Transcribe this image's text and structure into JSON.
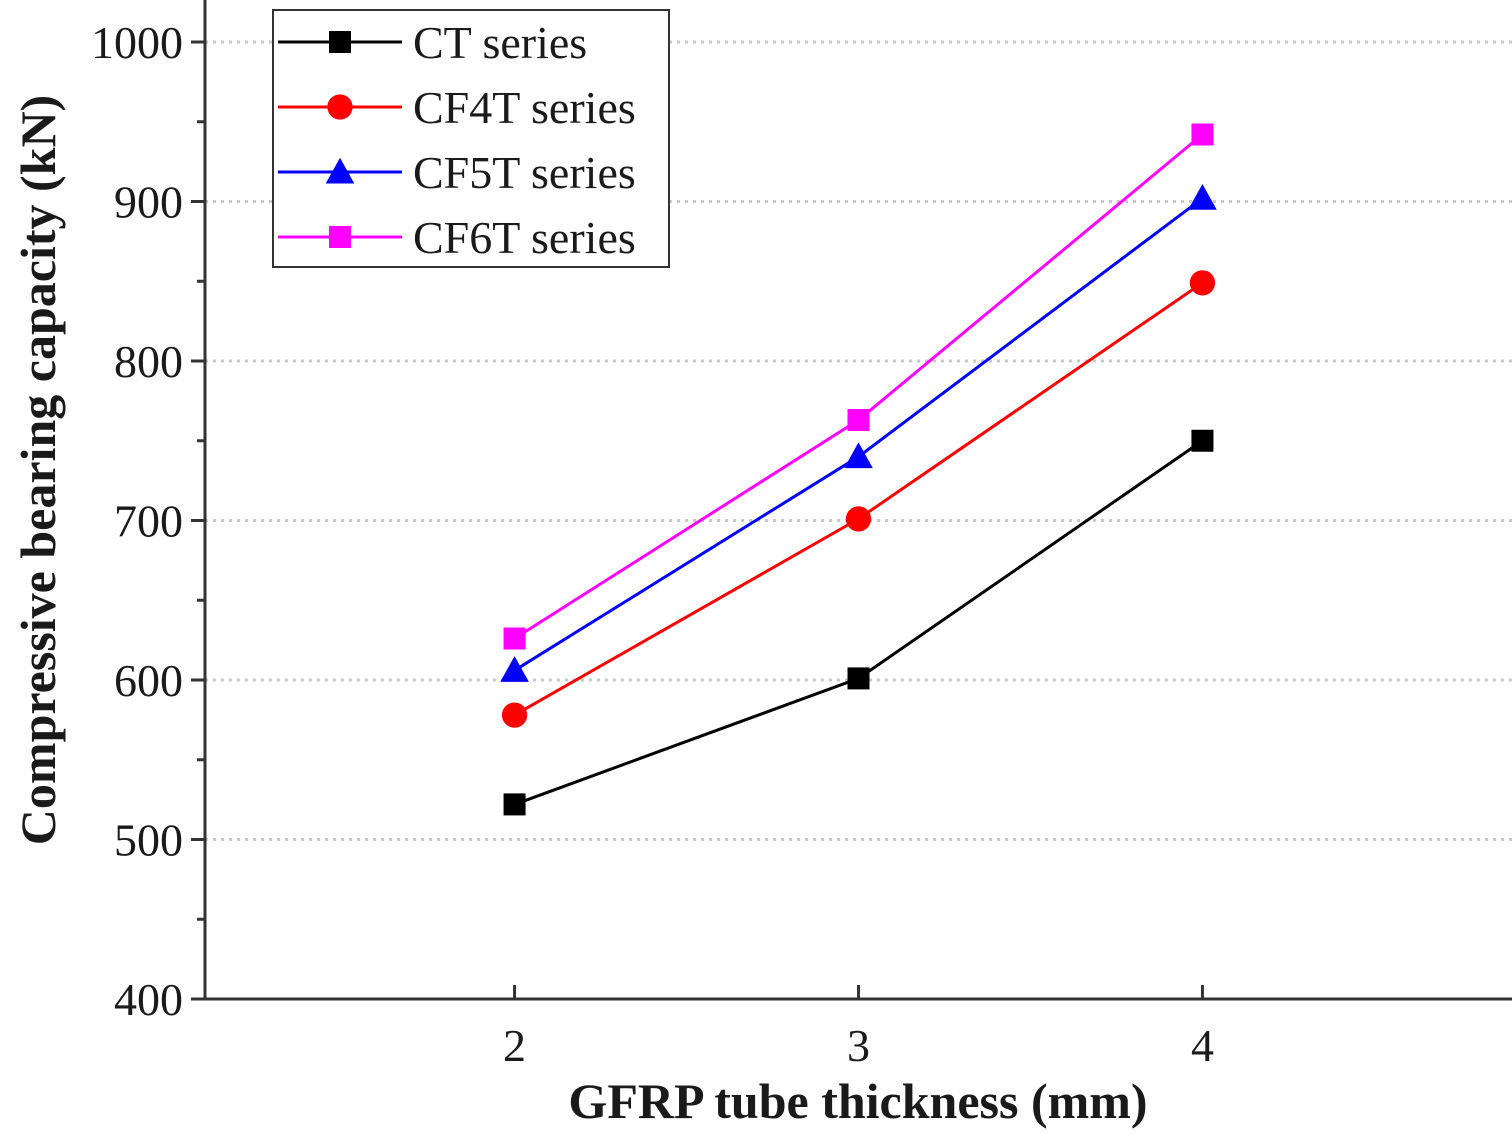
{
  "chart_data": {
    "type": "line",
    "xlabel": "GFRP tube thickness (mm)",
    "ylabel": "Compressive bearing capacity (kN)",
    "x": [
      2,
      3,
      4
    ],
    "xlim": [
      1.1,
      4.9
    ],
    "ylim": [
      400,
      1000
    ],
    "x_ticks": [
      2,
      3,
      4
    ],
    "y_ticks": [
      400,
      500,
      600,
      700,
      800,
      900,
      1000
    ],
    "grid": "horizontal dotted",
    "legend_position": "top-left",
    "series": [
      {
        "name": "CT series",
        "color": "#000000",
        "marker": "square",
        "values": [
          522,
          601,
          750
        ]
      },
      {
        "name": "CF4T series",
        "color": "#ff0000",
        "marker": "circle",
        "values": [
          578,
          701,
          849
        ]
      },
      {
        "name": "CF5T series",
        "color": "#0000ff",
        "marker": "triangle",
        "values": [
          606,
          740,
          902
        ]
      },
      {
        "name": "CF6T series",
        "color": "#ff00ff",
        "marker": "square",
        "values": [
          626,
          763,
          942
        ]
      }
    ]
  }
}
